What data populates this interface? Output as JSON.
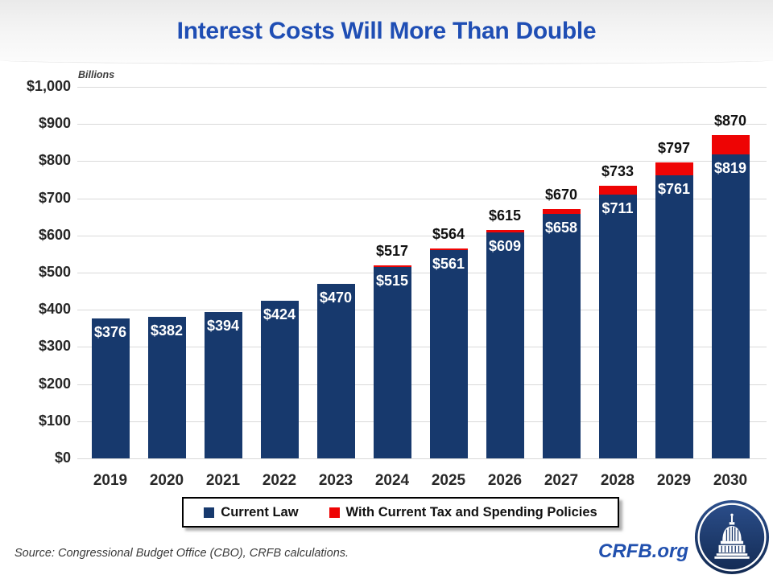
{
  "chart_data": {
    "type": "bar",
    "stacked": true,
    "title": "Interest Costs Will More Than Double",
    "units_label": "Billions",
    "categories": [
      "2019",
      "2020",
      "2021",
      "2022",
      "2023",
      "2024",
      "2025",
      "2026",
      "2027",
      "2028",
      "2029",
      "2030"
    ],
    "series": [
      {
        "name": "Current Law",
        "color": "#17396d",
        "values": [
          376,
          382,
          394,
          424,
          470,
          515,
          561,
          609,
          658,
          711,
          761,
          819
        ]
      },
      {
        "name": "With Current Tax and Spending Policies",
        "color": "#ee0404",
        "values": [
          0,
          0,
          0,
          0,
          0,
          2,
          3,
          6,
          12,
          22,
          36,
          51
        ]
      }
    ],
    "totals": [
      376,
      382,
      394,
      424,
      470,
      517,
      564,
      615,
      670,
      733,
      797,
      870
    ],
    "bar_value_labels": [
      "$376",
      "$382",
      "$394",
      "$424",
      "$470",
      "$515",
      "$561",
      "$609",
      "$658",
      "$711",
      "$761",
      "$819"
    ],
    "total_value_labels": [
      "",
      "",
      "",
      "",
      "",
      "$517",
      "$564",
      "$615",
      "$670",
      "$733",
      "$797",
      "$870"
    ],
    "y_axis": {
      "min": 0,
      "max": 1000,
      "tick_interval": 100,
      "tick_labels": [
        "$0",
        "$100",
        "$200",
        "$300",
        "$400",
        "$500",
        "$600",
        "$700",
        "$800",
        "$900",
        "$1,000"
      ]
    },
    "grid": true,
    "legend_position": "bottom"
  },
  "legend": {
    "items": [
      {
        "label": "Current Law",
        "color": "#17396d"
      },
      {
        "label": "With Current Tax and Spending Policies",
        "color": "#ee0404"
      }
    ]
  },
  "footer": {
    "source": "Source: Congressional Budget Office (CBO), CRFB calculations.",
    "brand": "CRFB.org"
  },
  "colors": {
    "title_blue": "#1f4eb4",
    "bar_navy": "#17396d",
    "policy_red": "#ee0404",
    "grid_gray": "#d9d9d9",
    "brand_blue": "#2150ae",
    "logo_navy": "#1c3a6e"
  }
}
